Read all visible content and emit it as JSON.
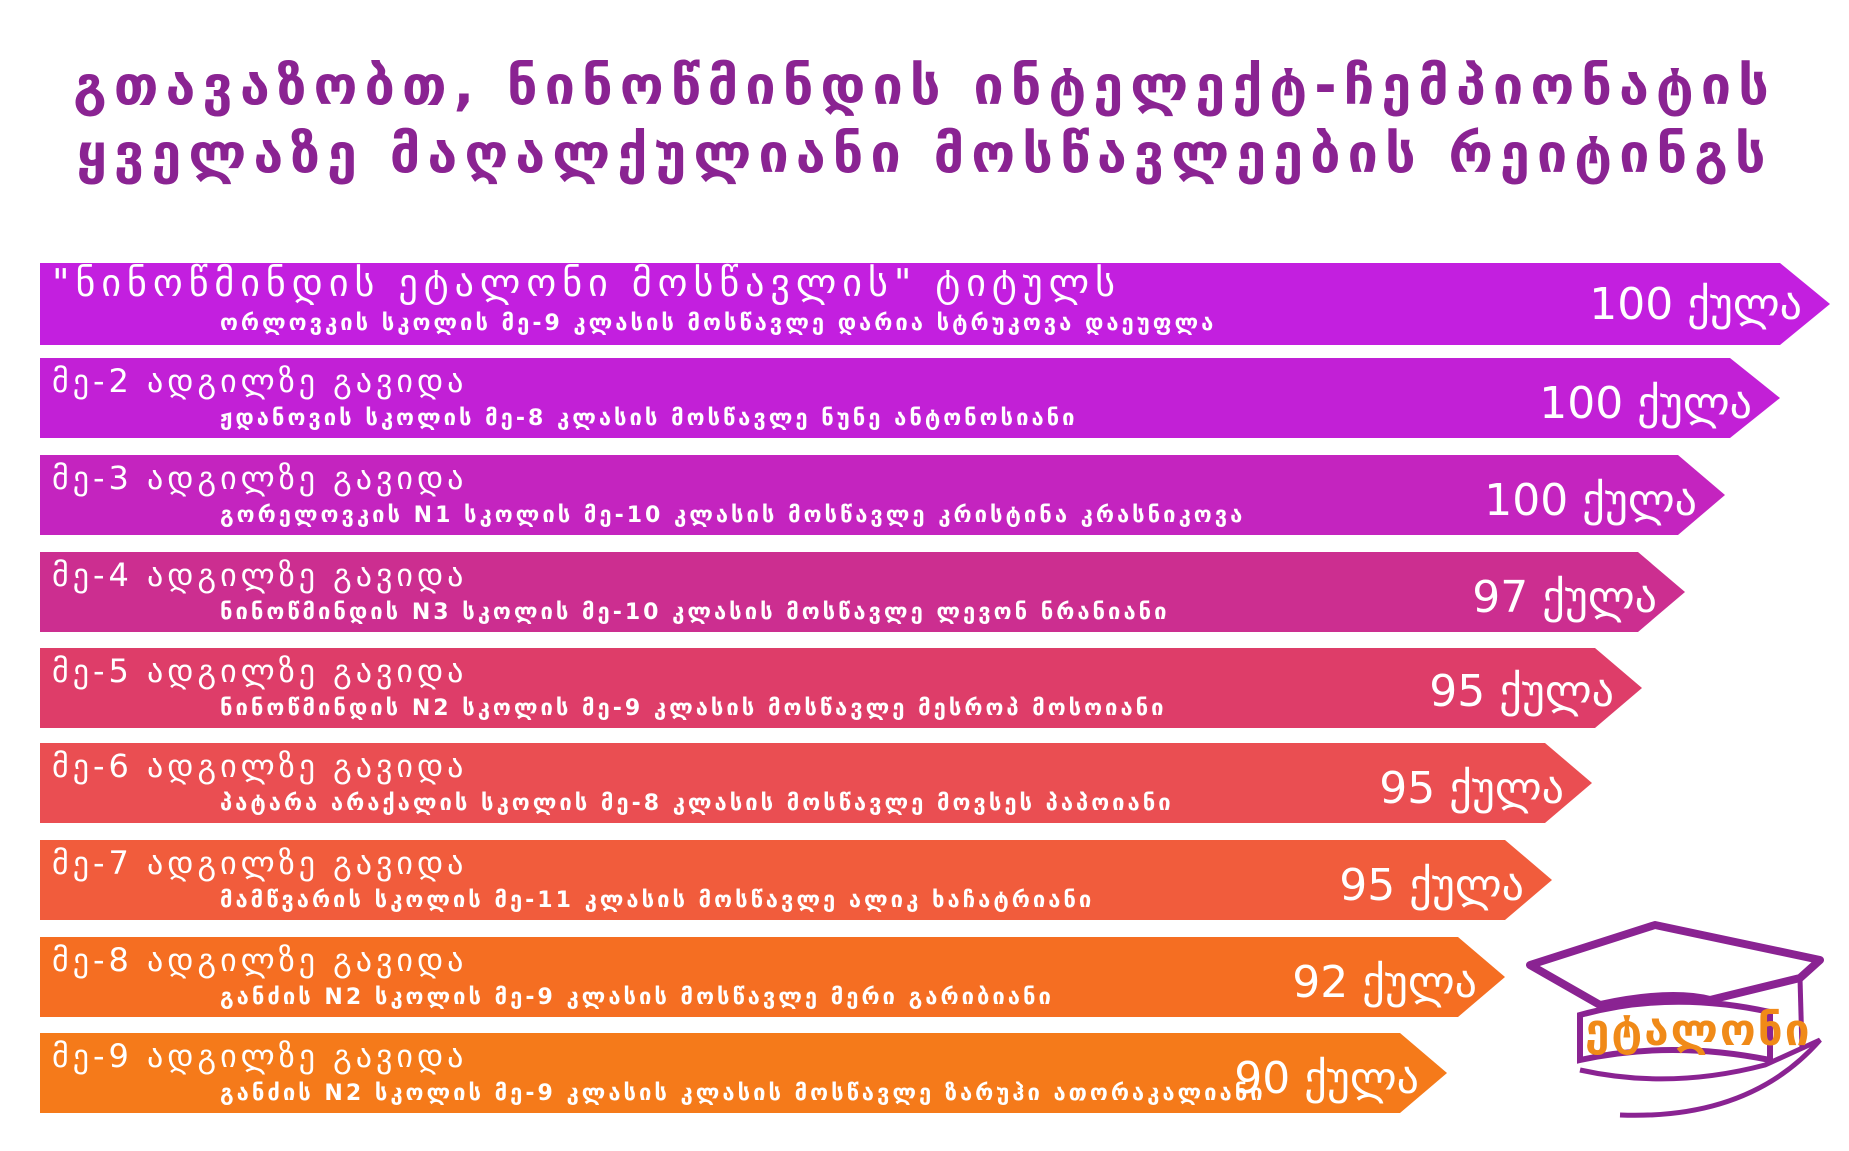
{
  "header": {
    "line1": "გთავაზობთ, ნინოწმინდის ინტელექტ-ჩემპიონატის",
    "line2": "ყველაზე მაღალქულიანი მოსწავლეების რეიტინგს"
  },
  "rows": [
    {
      "place": "\"ნინოწმინდის ეტალონი მოსწავლის\" ტიტულს",
      "student": "ორლოვკის სკოლის მე-9 კლასის მოსწავლე დარია სტრუკოვა დაეუფლა",
      "score": "100 ქულა",
      "color": "#c31fdf"
    },
    {
      "place": "მე-2 ადგილზე გავიდა",
      "student": "ჟდანოვის სკოლის  მე-8 კლასის მოსწავლე ნუნე ანტონოსიანი",
      "score": "100 ქულა",
      "color": "#c220d6"
    },
    {
      "place": "მე-3 ადგილზე გავიდა",
      "student": "გორელოვკის N1 სკოლის მე-10 კლასის მოსწავლე კრისტინა კრასნიკოვა",
      "score": "100 ქულა",
      "color": "#c424bf"
    },
    {
      "place": "მე-4 ადგილზე გავიდა",
      "student": "ნინოწმინდის N3 სკოლის მე-10 კლასის მოსწავლე ლევონ ნრანიანი",
      "score": "97 ქულა",
      "color": "#cc2e90"
    },
    {
      "place": "მე-5 ადგილზე გავიდა",
      "student": "ნინოწმინდის N2 სკოლის  მე-9 კლასის მოსწავლე მესროპ მოსოიანი",
      "score": "95 ქულა",
      "color": "#de3d69"
    },
    {
      "place": "მე-6 ადგილზე გავიდა",
      "student": "პატარა არაქალის სკოლის  მე-8 კლასის მოსწავლე მოვსეს პაპოიანი",
      "score": "95 ქულა",
      "color": "#ea4e52"
    },
    {
      "place": "მე-7 ადგილზე გავიდა",
      "student": "მამწვარის სკოლის  მე-11 კლასის მოსწავლე ალიკ ხაჩატრიანი",
      "score": "95 ქულა",
      "color": "#f15c3c"
    },
    {
      "place": "მე-8 ადგილზე გავიდა",
      "student": "განძის N2 სკოლის  მე-9 კლასის მოსწავლე მერი გარიბიანი",
      "score": "92 ქულა",
      "color": "#f56e22"
    },
    {
      "place": "მე-9 ადგილზე გავიდა",
      "student": "განძის N2 სკოლის მე-9 კლასის კლასის მოსწავლე ზარუჰი ათორაკალიანი",
      "score": "90 ქულა",
      "color": "#f57a1a"
    }
  ],
  "logo": {
    "text": "ეტალონი",
    "cap_color": "#8a2392",
    "text_color": "#f08a18"
  }
}
